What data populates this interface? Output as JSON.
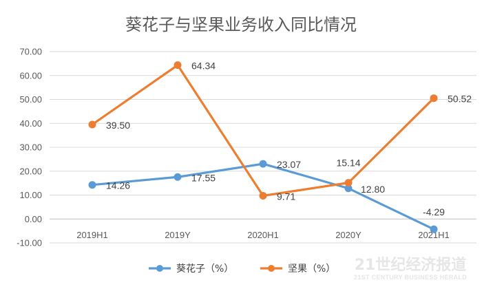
{
  "chart_data": {
    "type": "line",
    "title": "葵花子与坚果业务收入同比情况",
    "categories": [
      "2019H1",
      "2019Y",
      "2020H1",
      "2020Y",
      "2021H1"
    ],
    "series": [
      {
        "name": "葵花子（%）",
        "values": [
          14.26,
          17.55,
          23.07,
          12.8,
          -4.29
        ],
        "labels": [
          "14.26",
          "17.55",
          "23.07",
          "12.80",
          "-4.29"
        ],
        "color": "#5B9BD5"
      },
      {
        "name": "坚果（%）",
        "values": [
          39.5,
          64.34,
          9.71,
          15.14,
          50.52
        ],
        "labels": [
          "39.50",
          "64.34",
          "9.71",
          "15.14",
          "50.52"
        ],
        "color": "#ED7D31"
      }
    ],
    "yticks": [
      "70.00",
      "60.00",
      "50.00",
      "40.00",
      "30.00",
      "20.00",
      "10.00",
      "0.00",
      "-10.00"
    ],
    "ylim": [
      -10,
      70
    ],
    "grid": true,
    "legend_position": "bottom"
  },
  "watermark": {
    "main": "21世纪经济报道",
    "sub": "21ST CENTURY BUSINESS HERALD"
  }
}
